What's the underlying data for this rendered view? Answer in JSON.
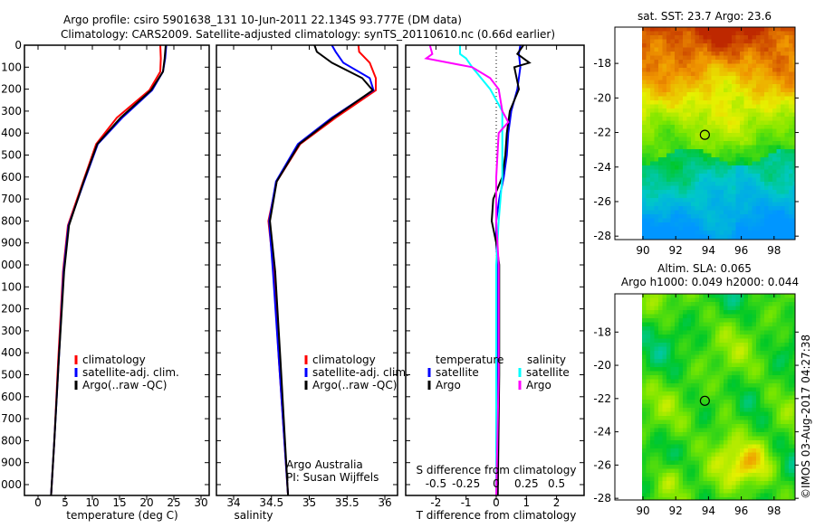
{
  "title_line1": "Argo profile: csiro 5901638_131 10-Jun-2011 22.134S 93.777E (DM data)",
  "title_line2": "Climatology: CARS2009. Satellite-adjusted climatology: synTS_20110610.nc (0.66d earlier)",
  "colors": {
    "climatology": "#ff0000",
    "satellite": "#0000ff",
    "argo": "#000000",
    "sal_satellite": "#00ffff",
    "sal_argo": "#ff00ff"
  },
  "chart_data": [
    {
      "type": "line",
      "name": "temperature",
      "xlabel": "temperature (deg C)",
      "xlim": [
        -0.5,
        31
      ],
      "ylim": [
        2050,
        0
      ],
      "xticks": [
        0,
        5,
        10,
        15,
        20,
        25,
        30
      ],
      "yticks": [
        0,
        100,
        200,
        300,
        400,
        500,
        600,
        700,
        800,
        900,
        1000,
        1100,
        1200,
        1300,
        1400,
        1500,
        1600,
        1700,
        1800,
        1900,
        2000
      ],
      "legend": [
        "climatology",
        "satellite-adj. clim.",
        "Argo(..raw -QC)"
      ],
      "series": [
        {
          "name": "climatology",
          "color": "#ff0000",
          "depth": [
            0,
            60,
            120,
            205,
            330,
            450,
            620,
            820,
            1030,
            1440,
            1800,
            2050
          ],
          "values": [
            22.5,
            22.6,
            22.5,
            20.5,
            14.5,
            10.7,
            8.3,
            5.5,
            4.6,
            3.7,
            3.0,
            2.4
          ]
        },
        {
          "name": "satellite-adj. clim.",
          "color": "#0000ff",
          "depth": [
            0,
            60,
            120,
            205,
            330,
            450,
            620,
            820,
            1030,
            1440,
            1800,
            2050
          ],
          "values": [
            23.6,
            23.4,
            23.0,
            21.0,
            15.5,
            11.0,
            8.5,
            5.6,
            4.7,
            3.8,
            3.0,
            2.4
          ]
        },
        {
          "name": "Argo(..raw -QC)",
          "color": "#000000",
          "depth": [
            0,
            60,
            120,
            205,
            330,
            450,
            620,
            820,
            1030,
            1440,
            1800,
            2050
          ],
          "values": [
            23.5,
            23.3,
            23.0,
            20.8,
            15.2,
            10.9,
            8.4,
            5.7,
            4.8,
            3.8,
            3.0,
            2.4
          ]
        }
      ]
    },
    {
      "type": "line",
      "name": "salinity",
      "xlabel": "salinity",
      "xlim": [
        33.75,
        36.2
      ],
      "ylim": [
        2050,
        0
      ],
      "xticks": [
        34,
        34.5,
        35,
        35.5,
        36
      ],
      "legend": [
        "climatology",
        "satellite-adj. clim.",
        "Argo(..raw -QC)"
      ],
      "annotation": [
        "Argo Australia",
        "PI: Susan Wijffels"
      ],
      "series": [
        {
          "name": "climatology",
          "color": "#ff0000",
          "depth": [
            0,
            30,
            80,
            150,
            205,
            330,
            450,
            620,
            800,
            1030,
            1440,
            2050
          ],
          "values": [
            35.65,
            35.66,
            35.8,
            35.88,
            35.88,
            35.35,
            34.88,
            34.57,
            34.46,
            34.53,
            34.6,
            34.72
          ]
        },
        {
          "name": "satellite-adj. clim.",
          "color": "#0000ff",
          "depth": [
            0,
            30,
            80,
            150,
            205,
            330,
            450,
            620,
            800,
            1030,
            1440,
            2050
          ],
          "values": [
            35.3,
            35.35,
            35.45,
            35.8,
            35.85,
            35.3,
            34.85,
            34.56,
            34.47,
            34.52,
            34.6,
            34.72
          ]
        },
        {
          "name": "Argo(..raw -QC)",
          "color": "#000000",
          "depth": [
            0,
            30,
            80,
            150,
            205,
            330,
            450,
            620,
            800,
            1030,
            1440,
            2050
          ],
          "values": [
            35.07,
            35.1,
            35.3,
            35.7,
            35.84,
            35.32,
            34.87,
            34.57,
            34.48,
            34.55,
            34.62,
            34.72
          ]
        }
      ]
    },
    {
      "type": "line",
      "name": "differences",
      "xlabel": "T difference from climatology",
      "xlabel2": "S difference from climatology",
      "xlim_T": [
        -3,
        2.9
      ],
      "xticks_T": [
        -2,
        -1,
        0,
        1,
        2
      ],
      "xticks_S": [
        -0.5,
        -0.25,
        0,
        0.25,
        0.5
      ],
      "legend_temperature": {
        "title": "temperature",
        "items": [
          "satellite",
          "Argo"
        ]
      },
      "legend_salinity": {
        "title": "salinity",
        "items": [
          "satellite",
          "Argo"
        ]
      },
      "series": [
        {
          "name": "temperature satellite",
          "color": "#0000ff",
          "units": "T",
          "depth": [
            0,
            40,
            100,
            200,
            300,
            400,
            500,
            600,
            700,
            800,
            900,
            1000,
            1500,
            2050
          ],
          "values": [
            0.8,
            0.75,
            0.8,
            0.7,
            0.5,
            0.4,
            0.35,
            0.25,
            0.1,
            0,
            0,
            0.05,
            0.05,
            0
          ]
        },
        {
          "name": "temperature Argo",
          "color": "#000000",
          "units": "T",
          "depth": [
            0,
            40,
            80,
            100,
            200,
            300,
            400,
            500,
            600,
            700,
            800,
            900,
            1000,
            1500,
            2050
          ],
          "values": [
            0.9,
            0.7,
            1.1,
            0.6,
            0.75,
            0.45,
            0.35,
            0.3,
            0.2,
            -0.1,
            -0.15,
            0.0,
            0.1,
            0.1,
            0.05
          ]
        },
        {
          "name": "salinity satellite",
          "color": "#00ffff",
          "units": "S",
          "depth": [
            0,
            40,
            60,
            100,
            200,
            300,
            400,
            600,
            800,
            1000,
            1500,
            2050
          ],
          "values": [
            -0.3,
            -0.3,
            -0.25,
            -0.2,
            -0.05,
            0.05,
            0.05,
            0.05,
            0.02,
            0.0,
            0.0,
            0.0
          ]
        },
        {
          "name": "salinity Argo",
          "color": "#ff00ff",
          "units": "S",
          "depth": [
            0,
            40,
            60,
            100,
            150,
            200,
            300,
            350,
            400,
            600,
            800,
            1000,
            1500,
            2050
          ],
          "values": [
            -0.55,
            -0.53,
            -0.58,
            -0.2,
            -0.05,
            0.02,
            0.05,
            0.1,
            0.02,
            0.0,
            0.0,
            0.02,
            0.02,
            0.0
          ]
        }
      ]
    },
    {
      "type": "heatmap",
      "name": "satellite SST map",
      "title": "sat. SST: 23.7 Argo: 23.6",
      "xticks": [
        90,
        92,
        94,
        96,
        98
      ],
      "yticks": [
        -18,
        -20,
        -22,
        -24,
        -26,
        -28
      ],
      "marker": {
        "lon": 93.777,
        "lat": -22.134
      }
    },
    {
      "type": "heatmap",
      "name": "altimetry SLA map",
      "title_line1": "Altim. SLA: 0.065",
      "title_line2": "Argo h1000: 0.049 h2000: 0.044",
      "xticks": [
        90,
        92,
        94,
        96,
        98
      ],
      "yticks": [
        -18,
        -20,
        -22,
        -24,
        -26,
        -28
      ],
      "marker": {
        "lon": 93.777,
        "lat": -22.134
      }
    }
  ],
  "footer_stamp": "©IMOS 03-Aug-2017 04:27:38"
}
